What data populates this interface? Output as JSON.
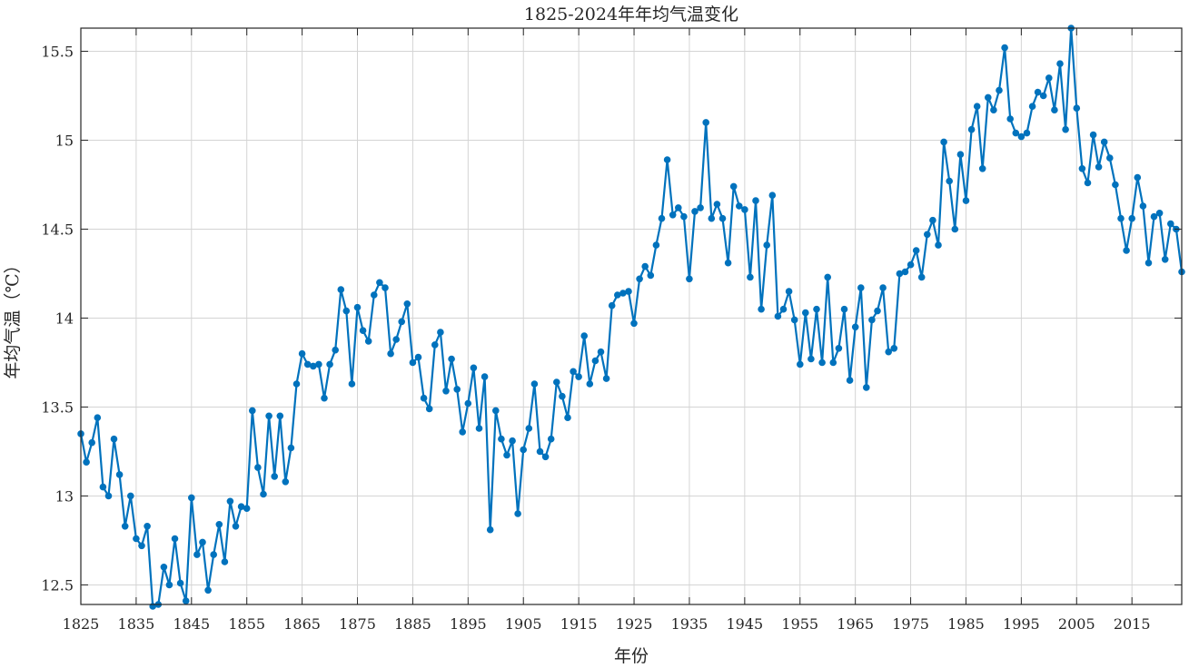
{
  "chart_data": {
    "type": "line",
    "title": "1825-2024年年均气温变化",
    "xlabel": "年份",
    "ylabel": "年均气温（℃）",
    "xlim": [
      1825,
      2024
    ],
    "ylim": [
      12.39,
      15.63
    ],
    "grid": true,
    "marker": "circle",
    "line_color": "#0072BD",
    "x_ticks": [
      1825,
      1835,
      1845,
      1855,
      1865,
      1875,
      1885,
      1895,
      1905,
      1915,
      1925,
      1935,
      1945,
      1955,
      1965,
      1975,
      1985,
      1995,
      2005,
      2015
    ],
    "x_tick_labels": [
      "1825",
      "1835",
      "1845",
      "1855",
      "1865",
      "1875",
      "1885",
      "1895",
      "1905",
      "1915",
      "1925",
      "1935",
      "1945",
      "1955",
      "1965",
      "1975",
      "1985",
      "1995",
      "2005",
      "2015"
    ],
    "y_ticks": [
      12.5,
      13,
      13.5,
      14,
      14.5,
      15,
      15.5
    ],
    "y_tick_labels": [
      "12.5",
      "13",
      "13.5",
      "14",
      "14.5",
      "15",
      "15.5"
    ],
    "series": [
      {
        "x": [
          1825,
          1826,
          1827,
          1828,
          1829,
          1830,
          1831,
          1832,
          1833,
          1834,
          1835,
          1836,
          1837,
          1838,
          1839,
          1840,
          1841,
          1842,
          1843,
          1844,
          1845,
          1846,
          1847,
          1848,
          1849,
          1850,
          1851,
          1852,
          1853,
          1854,
          1855,
          1856,
          1857,
          1858,
          1859,
          1860,
          1861,
          1862,
          1863,
          1864,
          1865,
          1866,
          1867,
          1868,
          1869,
          1870,
          1871,
          1872,
          1873,
          1874,
          1875,
          1876,
          1877,
          1878,
          1879,
          1880,
          1881,
          1882,
          1883,
          1884,
          1885,
          1886,
          1887,
          1888,
          1889,
          1890,
          1891,
          1892,
          1893,
          1894,
          1895,
          1896,
          1897,
          1898,
          1899,
          1900,
          1901,
          1902,
          1903,
          1904,
          1905,
          1906,
          1907,
          1908,
          1909,
          1910,
          1911,
          1912,
          1913,
          1914,
          1915,
          1916,
          1917,
          1918,
          1919,
          1920,
          1921,
          1922,
          1923,
          1924,
          1925,
          1926,
          1927,
          1928,
          1929,
          1930,
          1931,
          1932,
          1933,
          1934,
          1935,
          1936,
          1937,
          1938,
          1939,
          1940,
          1941,
          1942,
          1943,
          1944,
          1945,
          1946,
          1947,
          1948,
          1949,
          1950,
          1951,
          1952,
          1953,
          1954,
          1955,
          1956,
          1957,
          1958,
          1959,
          1960,
          1961,
          1962,
          1963,
          1964,
          1965,
          1966,
          1967,
          1968,
          1969,
          1970,
          1971,
          1972,
          1973,
          1974,
          1975,
          1976,
          1977,
          1978,
          1979,
          1980,
          1981,
          1982,
          1983,
          1984,
          1985,
          1986,
          1987,
          1988,
          1989,
          1990,
          1991,
          1992,
          1993,
          1994,
          1995,
          1996,
          1997,
          1998,
          1999,
          2000,
          2001,
          2002,
          2003,
          2004,
          2005,
          2006,
          2007,
          2008,
          2009,
          2010,
          2011,
          2012,
          2013,
          2014,
          2015,
          2016,
          2017,
          2018,
          2019,
          2020,
          2021,
          2022,
          2023,
          2024
        ],
        "values": [
          13.35,
          13.19,
          13.3,
          13.44,
          13.05,
          13.0,
          13.32,
          13.12,
          12.83,
          13.0,
          12.76,
          12.72,
          12.83,
          12.38,
          12.39,
          12.6,
          12.5,
          12.76,
          12.51,
          12.41,
          12.99,
          12.67,
          12.74,
          12.47,
          12.67,
          12.84,
          12.63,
          12.97,
          12.83,
          12.94,
          12.93,
          13.48,
          13.16,
          13.01,
          13.45,
          13.11,
          13.45,
          13.08,
          13.27,
          13.63,
          13.8,
          13.74,
          13.73,
          13.74,
          13.55,
          13.74,
          13.82,
          14.16,
          14.04,
          13.63,
          14.06,
          13.93,
          13.87,
          14.13,
          14.2,
          14.17,
          13.8,
          13.88,
          13.98,
          14.08,
          13.75,
          13.78,
          13.55,
          13.49,
          13.85,
          13.92,
          13.59,
          13.77,
          13.6,
          13.36,
          13.52,
          13.72,
          13.38,
          13.67,
          12.81,
          13.48,
          13.32,
          13.23,
          13.31,
          12.9,
          13.26,
          13.38,
          13.63,
          13.25,
          13.22,
          13.32,
          13.64,
          13.56,
          13.44,
          13.7,
          13.67,
          13.9,
          13.63,
          13.76,
          13.81,
          13.66,
          14.07,
          14.13,
          14.14,
          14.15,
          13.97,
          14.22,
          14.29,
          14.24,
          14.41,
          14.56,
          14.89,
          14.58,
          14.62,
          14.57,
          14.22,
          14.6,
          14.62,
          15.1,
          14.56,
          14.64,
          14.56,
          14.31,
          14.74,
          14.63,
          14.61,
          14.23,
          14.66,
          14.05,
          14.41,
          14.69,
          14.01,
          14.05,
          14.15,
          13.99,
          13.74,
          14.03,
          13.77,
          14.05,
          13.75,
          14.23,
          13.75,
          13.83,
          14.05,
          13.65,
          13.95,
          14.17,
          13.61,
          13.99,
          14.04,
          14.17,
          13.81,
          13.83,
          14.25,
          14.26,
          14.3,
          14.38,
          14.23,
          14.47,
          14.55,
          14.41,
          14.99,
          14.77,
          14.5,
          14.92,
          14.66,
          15.06,
          15.19,
          14.84,
          15.24,
          15.17,
          15.28,
          15.52,
          15.12,
          15.04,
          15.02,
          15.04,
          15.19,
          15.27,
          15.25,
          15.35,
          15.17,
          15.43,
          15.06,
          15.63,
          15.18,
          14.84,
          14.76,
          15.03,
          14.85,
          14.99,
          14.9,
          14.75,
          14.56,
          14.38,
          14.56,
          14.79,
          14.63,
          14.31,
          14.57,
          14.59,
          14.33,
          14.53,
          14.5,
          14.26
        ]
      }
    ]
  }
}
